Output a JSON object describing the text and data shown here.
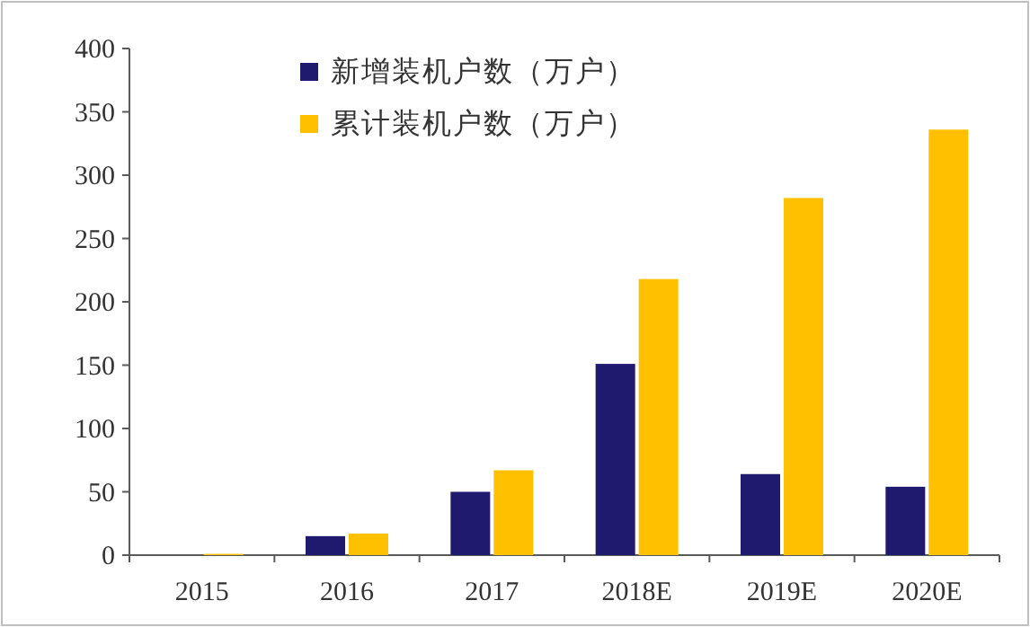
{
  "chart_data": {
    "type": "bar",
    "categories": [
      "2015",
      "2016",
      "2017",
      "2018E",
      "2019E",
      "2020E"
    ],
    "series": [
      {
        "name": "新增装机户数（万户）",
        "color": "#1f1a6e",
        "values": [
          0,
          15,
          50,
          151,
          64,
          54
        ]
      },
      {
        "name": "累计装机户数（万户）",
        "color": "#ffc000",
        "values": [
          1,
          17,
          67,
          218,
          282,
          336
        ]
      }
    ],
    "ylim": [
      0,
      400
    ],
    "yticks": [
      0,
      50,
      100,
      150,
      200,
      250,
      300,
      350,
      400
    ],
    "legend": "top left",
    "grid": false
  }
}
